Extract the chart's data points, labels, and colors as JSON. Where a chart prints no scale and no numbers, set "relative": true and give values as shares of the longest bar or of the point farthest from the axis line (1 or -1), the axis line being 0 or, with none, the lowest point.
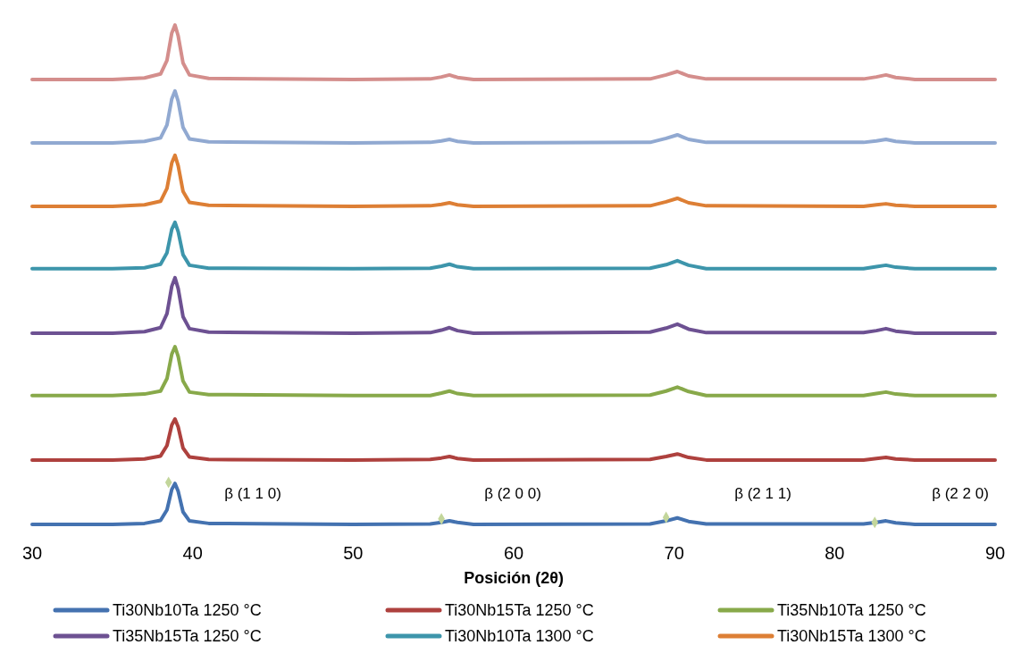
{
  "chart_data": {
    "type": "line",
    "relative": true,
    "xlabel": "Posición (2θ)",
    "xlim": [
      30,
      90
    ],
    "xticks": [
      30,
      40,
      50,
      60,
      70,
      80,
      90
    ],
    "legend": "bottom",
    "marker": "none",
    "line_style": "solid",
    "x": [
      30,
      35,
      37,
      38,
      38.4,
      38.7,
      38.9,
      39.1,
      39.4,
      39.8,
      41,
      50,
      54.8,
      55.5,
      56,
      56.5,
      57.5,
      68.5,
      69.5,
      70.2,
      70.9,
      72,
      81.8,
      82.6,
      83.2,
      83.8,
      85,
      90
    ],
    "series": [
      {
        "name": "Ti30Nb10Ta 1250 °C",
        "color": "#4472b0",
        "values": [
          0,
          0,
          0.002,
          0.008,
          0.029,
          0.07,
          0.082,
          0.066,
          0.025,
          0.007,
          0.002,
          0,
          0.001,
          0.004,
          0.007,
          0.004,
          0,
          0.001,
          0.007,
          0.013,
          0.006,
          0.001,
          0.001,
          0.004,
          0.007,
          0.003,
          0,
          0
        ]
      },
      {
        "name": "Ti30Nb15Ta 1250 °C",
        "color": "#ae413e",
        "values": [
          0.129,
          0.129,
          0.131,
          0.137,
          0.158,
          0.199,
          0.211,
          0.195,
          0.153,
          0.135,
          0.13,
          0.129,
          0.13,
          0.133,
          0.136,
          0.132,
          0.129,
          0.13,
          0.136,
          0.141,
          0.134,
          0.129,
          0.129,
          0.132,
          0.134,
          0.131,
          0.129,
          0.129
        ]
      },
      {
        "name": "Ti35Nb10Ta 1250 °C",
        "color": "#88a94a",
        "values": [
          0.258,
          0.258,
          0.261,
          0.267,
          0.292,
          0.341,
          0.356,
          0.336,
          0.287,
          0.265,
          0.26,
          0.258,
          0.258,
          0.263,
          0.267,
          0.262,
          0.258,
          0.259,
          0.267,
          0.275,
          0.266,
          0.258,
          0.258,
          0.262,
          0.265,
          0.261,
          0.258,
          0.258
        ]
      },
      {
        "name": "Ti35Nb15Ta 1250 °C",
        "color": "#6d5192",
        "values": [
          0.383,
          0.383,
          0.386,
          0.394,
          0.422,
          0.477,
          0.494,
          0.472,
          0.416,
          0.392,
          0.385,
          0.383,
          0.384,
          0.389,
          0.394,
          0.388,
          0.383,
          0.385,
          0.393,
          0.401,
          0.391,
          0.384,
          0.384,
          0.388,
          0.392,
          0.387,
          0.383,
          0.383
        ]
      },
      {
        "name": "Ti30Nb10Ta 1300 °C",
        "color": "#3d95ab",
        "values": [
          0.512,
          0.512,
          0.514,
          0.521,
          0.544,
          0.591,
          0.605,
          0.586,
          0.54,
          0.519,
          0.513,
          0.512,
          0.513,
          0.517,
          0.521,
          0.516,
          0.512,
          0.513,
          0.52,
          0.528,
          0.519,
          0.512,
          0.512,
          0.516,
          0.519,
          0.515,
          0.512,
          0.512
        ]
      },
      {
        "name": "Ti30Nb15Ta 1300 °C",
        "color": "#dd7f35",
        "values": [
          0.637,
          0.637,
          0.64,
          0.647,
          0.673,
          0.724,
          0.739,
          0.718,
          0.667,
          0.645,
          0.639,
          0.637,
          0.638,
          0.641,
          0.644,
          0.64,
          0.637,
          0.638,
          0.646,
          0.653,
          0.644,
          0.638,
          0.637,
          0.64,
          0.642,
          0.639,
          0.637,
          0.637
        ]
      },
      {
        "color": "#91a9d1",
        "values": [
          0.764,
          0.764,
          0.767,
          0.774,
          0.8,
          0.852,
          0.868,
          0.847,
          0.795,
          0.772,
          0.766,
          0.764,
          0.765,
          0.768,
          0.771,
          0.767,
          0.764,
          0.765,
          0.773,
          0.78,
          0.771,
          0.765,
          0.765,
          0.768,
          0.771,
          0.767,
          0.764,
          0.764
        ]
      },
      {
        "color": "#d48e8c",
        "values": [
          0.891,
          0.891,
          0.894,
          0.902,
          0.929,
          0.984,
          1,
          0.978,
          0.924,
          0.9,
          0.893,
          0.891,
          0.892,
          0.896,
          0.9,
          0.895,
          0.891,
          0.892,
          0.9,
          0.907,
          0.898,
          0.892,
          0.892,
          0.896,
          0.9,
          0.895,
          0.891,
          0.891
        ]
      },
      {
        "type": "scatter",
        "marker": "diamond",
        "color": "#c3d69b",
        "x": [
          38.5,
          55.5,
          69.5,
          82.5
        ],
        "values": [
          0.084,
          0.011,
          0.014,
          0.004
        ]
      }
    ],
    "annotations": [
      "β (1 1 0)",
      "β (2 0 0)",
      "β (2 1 1)",
      "β (2 2 0)"
    ]
  }
}
